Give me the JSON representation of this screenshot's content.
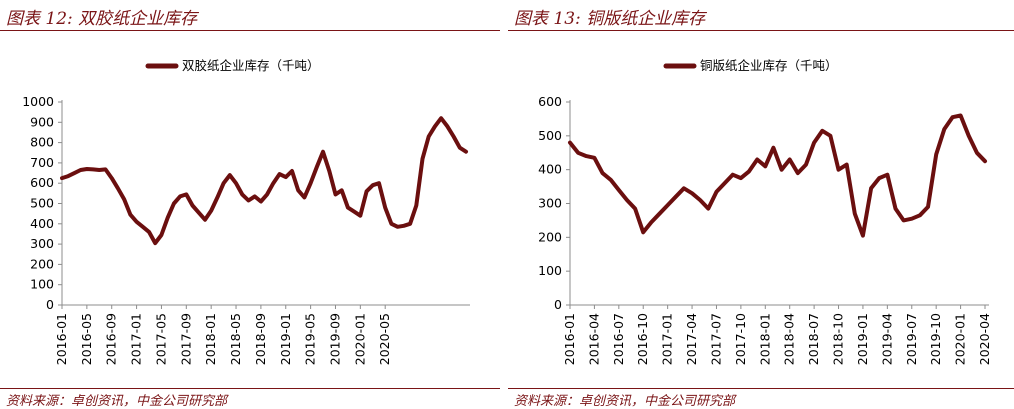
{
  "panels": [
    {
      "figure_title": "图表 12:  双胶纸企业库存",
      "source": "资料来源：卓创资讯，中金公司研究部",
      "colors": {
        "accent": "#7a1416",
        "series": "#6b0f0f"
      }
    },
    {
      "figure_title": "图表 13:  铜版纸企业库存",
      "source": "资料来源：卓创资讯，中金公司研究部",
      "colors": {
        "accent": "#7a1416",
        "series": "#6b0f0f"
      }
    }
  ],
  "chart_data": [
    {
      "type": "line",
      "title": "",
      "xlabel": "",
      "ylabel": "",
      "legend": "top-center",
      "grid": false,
      "ylim": [
        0,
        1000
      ],
      "yticks": [
        0,
        100,
        200,
        300,
        400,
        500,
        600,
        700,
        800,
        900,
        1000
      ],
      "xtick_labels": [
        "2016-01",
        "2016-05",
        "2016-09",
        "2017-01",
        "2017-05",
        "2017-09",
        "2018-01",
        "2018-05",
        "2018-09",
        "2019-01",
        "2019-05",
        "2019-09",
        "2020-01",
        "2020-05"
      ],
      "series": [
        {
          "name": "双胶纸企业库存（千吨）",
          "values": [
            625,
            635,
            650,
            665,
            670,
            668,
            665,
            668,
            625,
            575,
            520,
            445,
            410,
            385,
            360,
            305,
            345,
            430,
            500,
            535,
            545,
            490,
            455,
            420,
            465,
            530,
            600,
            640,
            600,
            545,
            515,
            535,
            510,
            545,
            600,
            645,
            630,
            660,
            565,
            530,
            600,
            680,
            755,
            660,
            545,
            565,
            480,
            460,
            440,
            560,
            590,
            600,
            480,
            400,
            385,
            390,
            400,
            490,
            720,
            830,
            880,
            920,
            880,
            830,
            775,
            755
          ]
        }
      ]
    },
    {
      "type": "line",
      "title": "",
      "xlabel": "",
      "ylabel": "",
      "legend": "top-center",
      "grid": false,
      "ylim": [
        0,
        600
      ],
      "yticks": [
        0,
        100,
        200,
        300,
        400,
        500,
        600
      ],
      "xtick_labels": [
        "2016-01",
        "2016-04",
        "2016-07",
        "2016-10",
        "2017-01",
        "2017-04",
        "2017-07",
        "2017-10",
        "2018-01",
        "2018-04",
        "2018-07",
        "2018-10",
        "2019-01",
        "2019-04",
        "2019-07",
        "2019-10",
        "2020-01",
        "2020-04"
      ],
      "series": [
        {
          "name": "铜版纸企业库存（千吨）",
          "values": [
            480,
            450,
            440,
            435,
            390,
            370,
            340,
            310,
            285,
            215,
            245,
            270,
            295,
            320,
            345,
            330,
            310,
            285,
            335,
            360,
            385,
            375,
            395,
            430,
            410,
            465,
            400,
            430,
            390,
            415,
            480,
            515,
            500,
            400,
            415,
            270,
            205,
            345,
            375,
            385,
            285,
            250,
            255,
            265,
            290,
            445,
            520,
            555,
            560,
            500,
            450,
            425
          ]
        }
      ]
    }
  ]
}
